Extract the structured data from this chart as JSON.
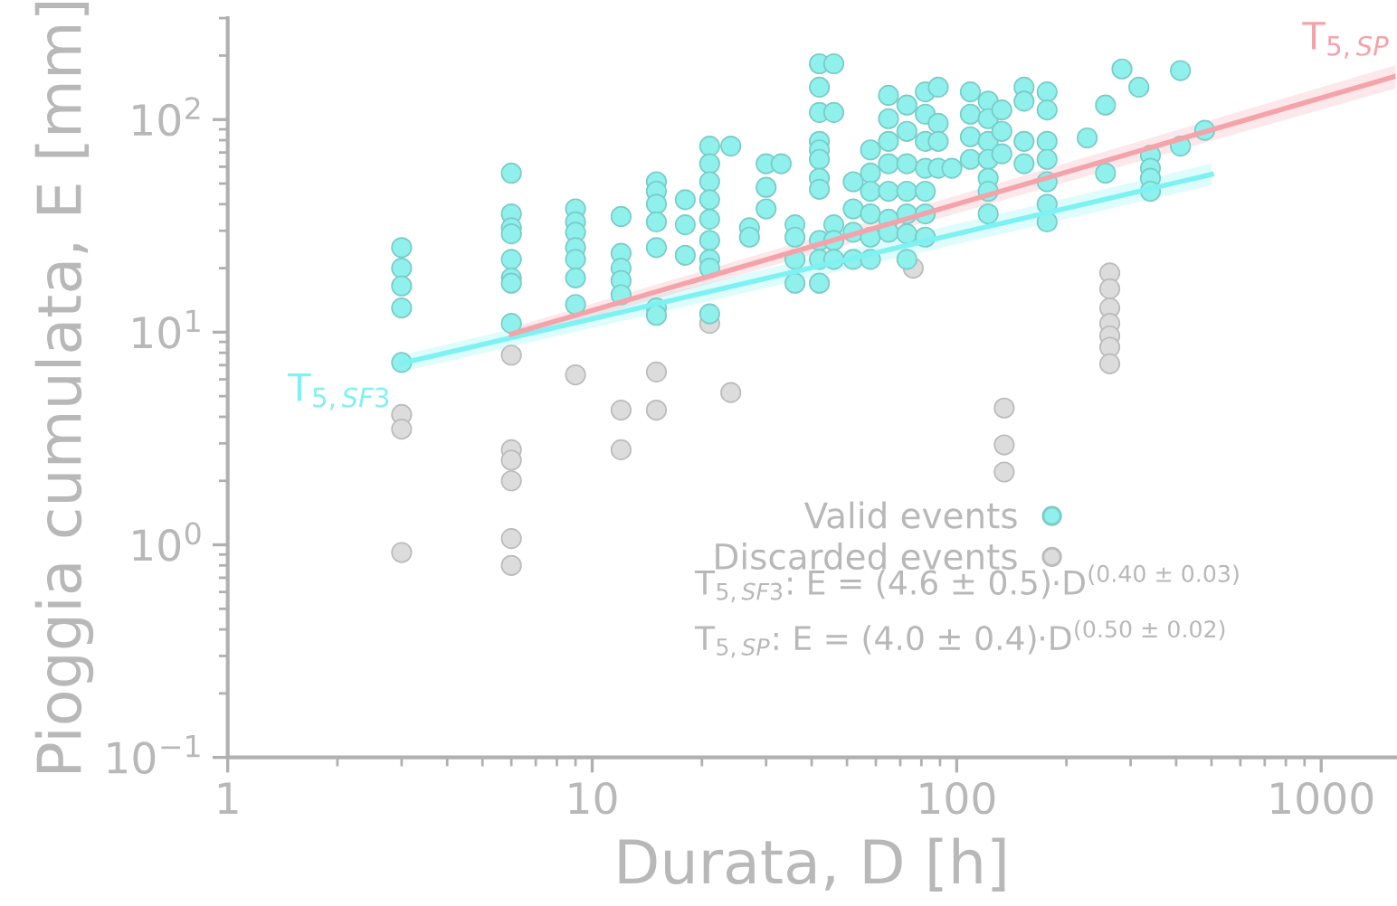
{
  "chart_data": {
    "type": "scatter",
    "xlabel": "Durata, D [h]",
    "ylabel": "Pioggia cumulata, E [mm]",
    "log": "xy",
    "xlim": [
      1,
      1600
    ],
    "ylim": [
      0.1,
      300
    ],
    "xticks": [
      1,
      10,
      100,
      1000
    ],
    "yticks": [
      {
        "value": 0.1,
        "label": "10$^{−1}$"
      },
      {
        "value": 1,
        "label": "10$^{0}$"
      },
      {
        "value": 10,
        "label": "10$^{1}$"
      },
      {
        "value": 100,
        "label": "10$^{2}$"
      }
    ],
    "grid": false,
    "legend": "bottom right",
    "series": [
      {
        "name": "Valid events",
        "marker": "circle",
        "color": "#8ff0ec",
        "x": [
          3,
          3,
          3,
          3,
          3,
          6,
          6,
          6,
          6,
          6,
          6,
          6,
          6,
          9,
          9,
          9,
          9,
          9,
          9,
          9,
          12,
          12,
          12,
          12,
          12,
          15,
          15,
          15,
          15,
          15,
          15,
          15,
          18,
          18,
          18,
          21,
          21,
          21,
          21,
          21,
          21,
          21,
          21,
          21,
          24,
          27,
          27,
          30,
          30,
          30,
          33,
          36,
          36,
          36,
          36,
          42,
          42,
          42,
          42,
          42,
          42,
          42,
          42,
          42,
          42,
          42,
          46,
          46,
          46,
          46,
          46,
          52,
          52,
          52,
          52,
          58,
          58,
          58,
          58,
          58,
          58,
          65,
          65,
          65,
          65,
          65,
          65,
          65,
          73,
          73,
          73,
          73,
          73,
          73,
          73,
          82,
          82,
          82,
          82,
          82,
          82,
          82,
          89,
          89,
          89,
          89,
          97,
          109,
          109,
          109,
          109,
          122,
          122,
          122,
          122,
          122,
          122,
          122,
          133,
          133,
          133,
          153,
          153,
          153,
          153,
          177,
          177,
          177,
          177,
          177,
          177,
          177,
          228,
          256,
          256,
          284,
          316,
          340,
          340,
          340,
          340,
          411,
          411,
          479
        ],
        "values": [
          25,
          20,
          16.5,
          13,
          7.2,
          56,
          36,
          31,
          29,
          22,
          18,
          17,
          11,
          38,
          33,
          29.5,
          25,
          22,
          18,
          13.5,
          35,
          23.5,
          20,
          17.5,
          15,
          51,
          46,
          40,
          33,
          25,
          13,
          12,
          42,
          32,
          23,
          75,
          62,
          51,
          42,
          34,
          27,
          22,
          20,
          12.2,
          75,
          31,
          28,
          62,
          48,
          38,
          62,
          32,
          28,
          22,
          17,
          183,
          142,
          108,
          79,
          72,
          65,
          53,
          47,
          27,
          22,
          17,
          183,
          108,
          32,
          27,
          22,
          51,
          38,
          29.5,
          22,
          72,
          56,
          46,
          36,
          28,
          22,
          130,
          101,
          79,
          62,
          46,
          34,
          29.5,
          117,
          88,
          62,
          46,
          36,
          29,
          22,
          135,
          106,
          79,
          59,
          46,
          36,
          28,
          142,
          96,
          79,
          59,
          59,
          135,
          106,
          83,
          65,
          122,
          101,
          79,
          65,
          53,
          46,
          36,
          111,
          88,
          69,
          142,
          122,
          79,
          62,
          135,
          111,
          79,
          65,
          51,
          40,
          33,
          82,
          56,
          117,
          173,
          142,
          68,
          59,
          53,
          46,
          170,
          75,
          89
        ]
      },
      {
        "name": "Discarded events",
        "marker": "circle",
        "color": "#dcdcdc",
        "x": [
          3,
          3,
          3,
          6,
          6,
          6,
          6,
          6,
          6,
          9,
          12,
          12,
          15,
          15,
          21,
          24,
          76,
          135,
          135,
          135,
          263,
          263,
          263,
          263,
          263,
          263,
          263
        ],
        "values": [
          4.1,
          3.5,
          0.92,
          7.8,
          2.8,
          2.5,
          2.0,
          1.07,
          0.8,
          6.3,
          4.3,
          2.8,
          6.5,
          4.3,
          11,
          5.2,
          20,
          4.4,
          2.95,
          2.2,
          19,
          16,
          13,
          11,
          9.6,
          8.5,
          7.1
        ]
      },
      {
        "name": "T$_{5,SF3}$",
        "type": "line",
        "color": "#7ef2f2",
        "x": [
          3,
          500
        ],
        "values": [
          7.14,
          55.2
        ],
        "lower": [
          6.5,
          49
        ],
        "upper": [
          7.8,
          62
        ]
      },
      {
        "name": "T$_{5,SP}$",
        "type": "line",
        "color": "#f5a3aa",
        "x": [
          6,
          1600
        ],
        "values": [
          9.8,
          160
        ],
        "lower": [
          9.2,
          140
        ],
        "upper": [
          10.5,
          180
        ]
      }
    ],
    "annotations": [
      "T$_{5,SF3}$: E = (4.6 ± 0.5)·D$^{(0.40 ± 0.03)}$",
      "T$_{5,SP}$: E = (4.0 ± 0.4)·D$^{(0.50 ± 0.02)}$"
    ]
  }
}
